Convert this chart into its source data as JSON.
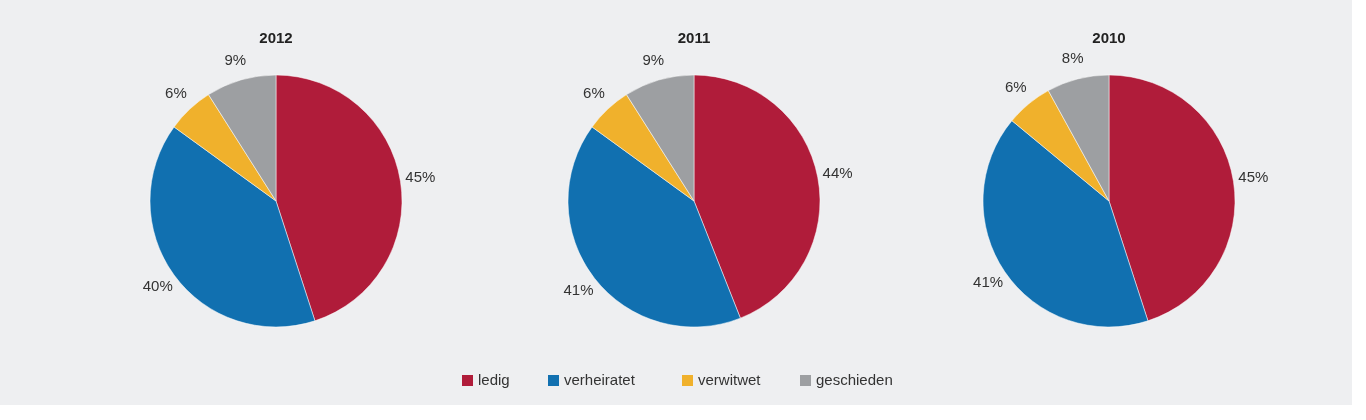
{
  "chart_data": [
    {
      "type": "pie",
      "title": "2012",
      "categories": [
        "ledig",
        "verheiratet",
        "verwitwet",
        "geschieden"
      ],
      "values": [
        45,
        40,
        6,
        9
      ],
      "value_labels": [
        "45%",
        "40%",
        "6%",
        "9%"
      ],
      "colors": [
        "#b01c3a",
        "#1170b0",
        "#f0b12c",
        "#9d9fa2"
      ],
      "legend": "bottom"
    },
    {
      "type": "pie",
      "title": "2011",
      "categories": [
        null,
        null,
        null,
        null
      ],
      "values": [
        44,
        41,
        6,
        9
      ],
      "value_labels": [
        "44%",
        "41%",
        "6%",
        "9%"
      ],
      "colors": [
        "#b01c3a",
        "#1170b0",
        "#f0b12c",
        "#9d9fa2"
      ]
    },
    {
      "type": "pie",
      "title": "2010",
      "categories": [
        null,
        null,
        null,
        null
      ],
      "values": [
        45,
        41,
        6,
        8
      ],
      "value_labels": [
        "45%",
        "41%",
        "6%",
        "8%"
      ],
      "colors": [
        "#b01c3a",
        "#1170b0",
        "#f0b12c",
        "#9d9fa2"
      ]
    }
  ]
}
